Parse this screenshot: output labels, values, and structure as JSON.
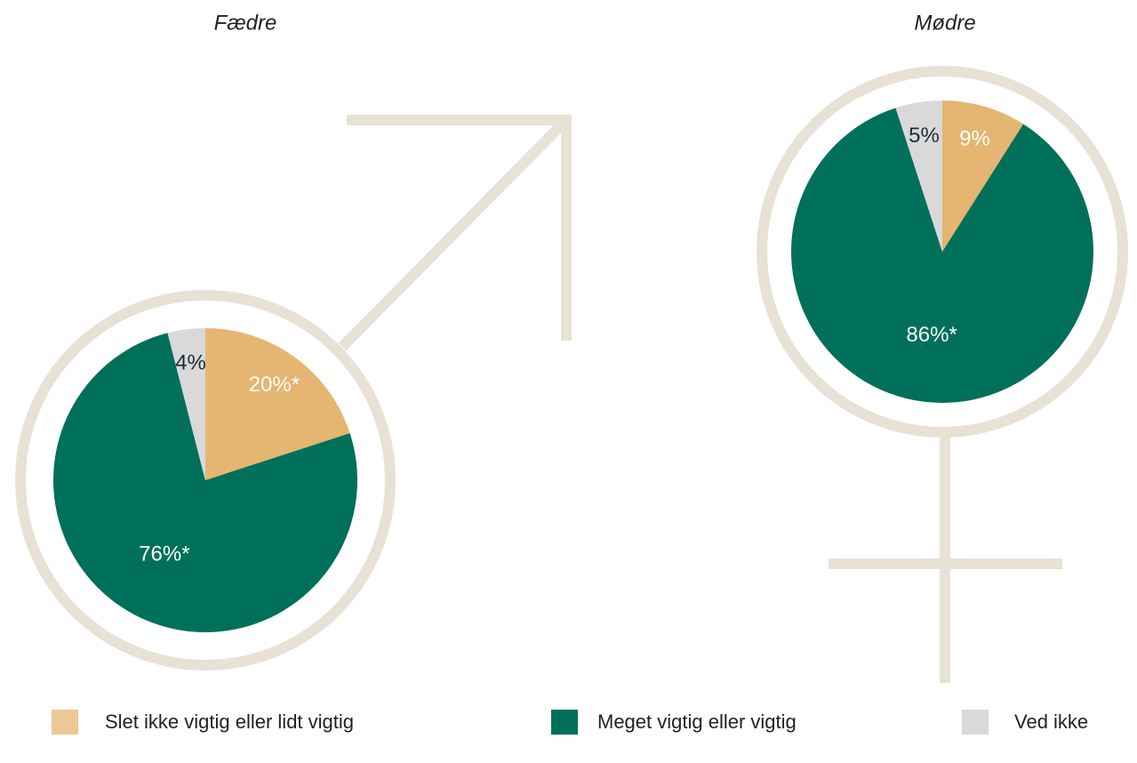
{
  "chart_data": [
    {
      "type": "pie",
      "title": "Fædre",
      "categories": [
        "Slet ikke vigtig eller lidt vigtig",
        "Meget vigtig eller vigtig",
        "Ved ikke"
      ],
      "values": [
        20,
        76,
        4
      ],
      "value_labels": [
        "20%*",
        "76%*",
        "4%"
      ],
      "colors": [
        "#e5b572",
        "#00705a",
        "#d9d9d9"
      ]
    },
    {
      "type": "pie",
      "title": "Mødre",
      "categories": [
        "Slet ikke vigtig eller lidt vigtig",
        "Meget vigtig eller vigtig",
        "Ved ikke"
      ],
      "values": [
        9,
        86,
        5
      ],
      "value_labels": [
        "9%",
        "86%*",
        "5%"
      ],
      "colors": [
        "#e5b572",
        "#00705a",
        "#d9d9d9"
      ]
    }
  ]
}
